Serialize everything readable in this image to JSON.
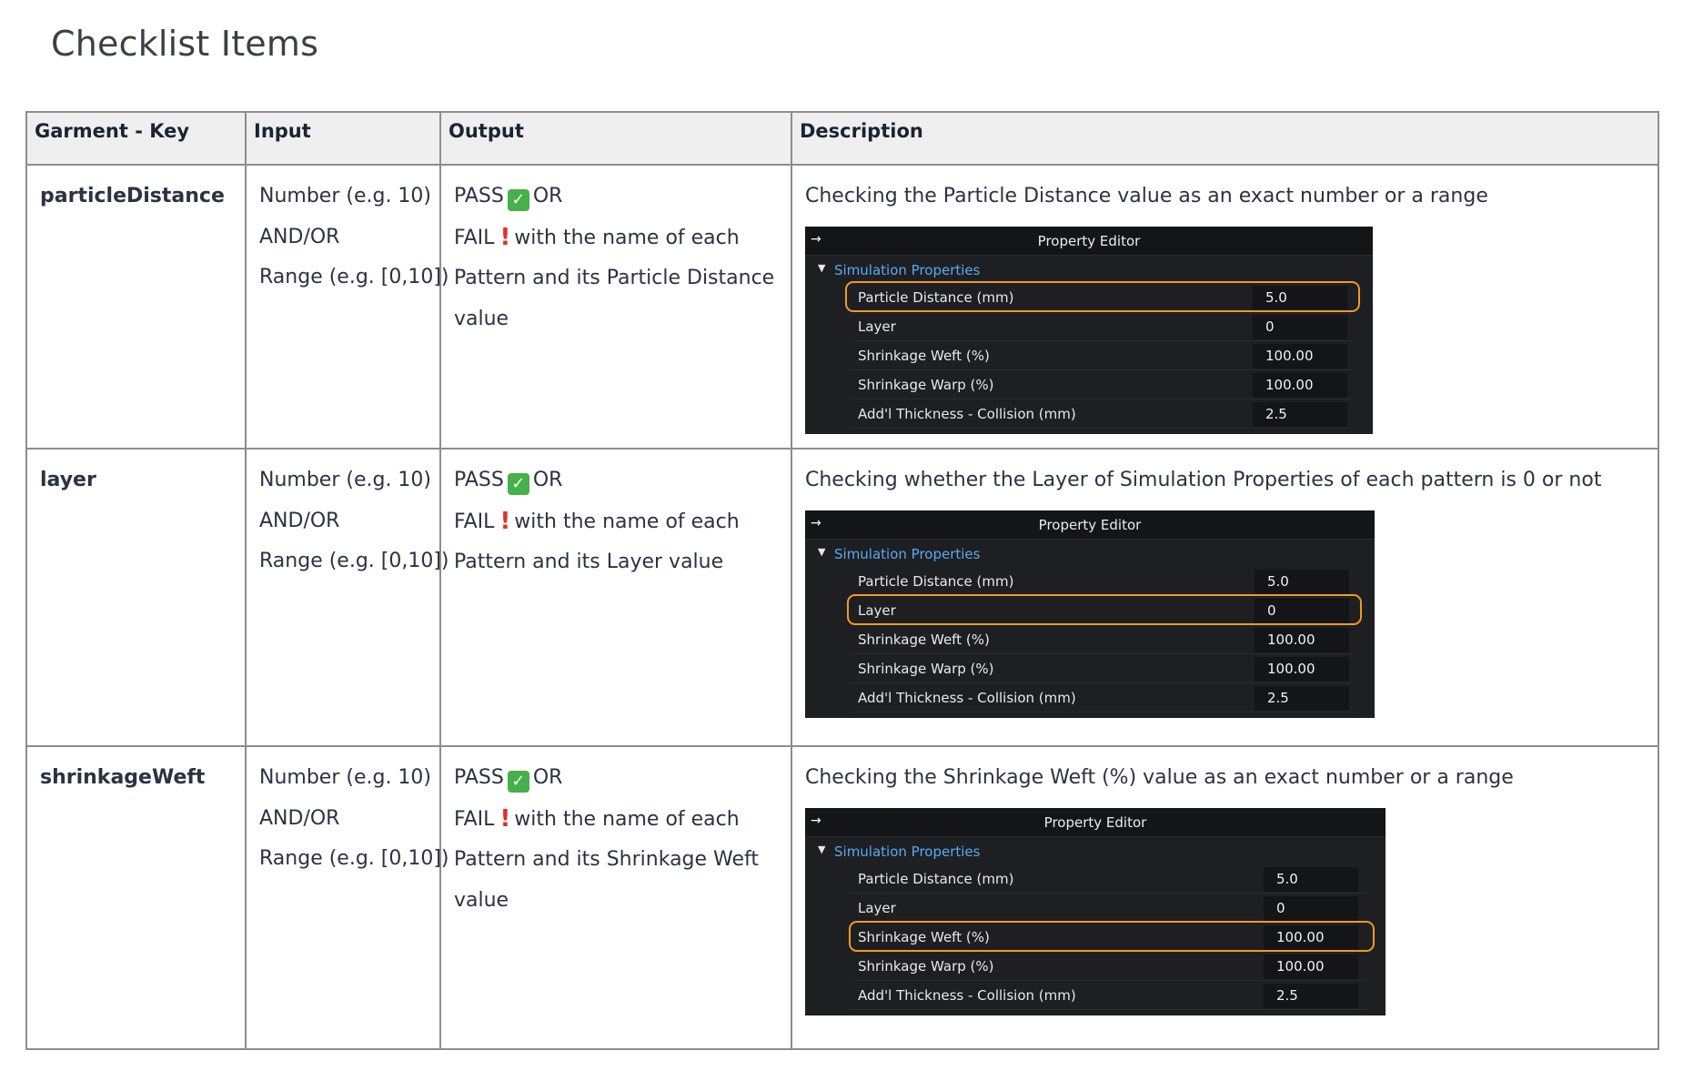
{
  "page_title": "Checklist Items",
  "table": {
    "headers": {
      "key": "Garment -  Key",
      "input": "Input",
      "output": "Output",
      "description": "Description"
    },
    "rows": [
      {
        "key": "particleDistance",
        "input_lines": [
          "Number (e.g. 10)",
          "AND/OR",
          "Range (e.g. [0,10])"
        ],
        "output": {
          "pass_word": "PASS",
          "pass_icon": "check-mark-icon",
          "or_word": "OR",
          "fail_word": "FAIL",
          "fail_icon": "exclamation-icon",
          "fail_text": "with the name of each",
          "continuation_lines": [
            "Pattern and its Particle Distance",
            "value"
          ]
        },
        "description": "Checking the Particle Distance value as an exact number or a range",
        "editor": {
          "title": "Property Editor",
          "section": "Simulation Properties",
          "highlighted_index": 0,
          "properties": [
            {
              "label": "Particle Distance (mm)",
              "value": "5.0"
            },
            {
              "label": "Layer",
              "value": "0"
            },
            {
              "label": "Shrinkage Weft (%)",
              "value": "100.00"
            },
            {
              "label": "Shrinkage Warp (%)",
              "value": "100.00"
            },
            {
              "label": "Add'l Thickness - Collision (mm)",
              "value": "2.5"
            }
          ]
        }
      },
      {
        "key": "layer",
        "input_lines": [
          "Number (e.g. 10)",
          "AND/OR",
          "Range (e.g. [0,10])"
        ],
        "output": {
          "pass_word": "PASS",
          "pass_icon": "check-mark-icon",
          "or_word": "OR",
          "fail_word": "FAIL",
          "fail_icon": "exclamation-icon",
          "fail_text": "with the name of each",
          "continuation_lines": [
            "Pattern and its Layer value"
          ]
        },
        "description": "Checking whether the Layer of Simulation Properties of each pattern is 0 or not",
        "editor": {
          "title": "Property Editor",
          "section": "Simulation Properties",
          "highlighted_index": 1,
          "properties": [
            {
              "label": "Particle Distance (mm)",
              "value": "5.0"
            },
            {
              "label": "Layer",
              "value": "0"
            },
            {
              "label": "Shrinkage Weft (%)",
              "value": "100.00"
            },
            {
              "label": "Shrinkage Warp (%)",
              "value": "100.00"
            },
            {
              "label": "Add'l Thickness - Collision (mm)",
              "value": "2.5"
            }
          ]
        }
      },
      {
        "key": "shrinkageWeft",
        "input_lines": [
          "Number (e.g. 10)",
          "AND/OR",
          "Range (e.g. [0,10])"
        ],
        "output": {
          "pass_word": "PASS",
          "pass_icon": "check-mark-icon",
          "or_word": "OR",
          "fail_word": "FAIL",
          "fail_icon": "exclamation-icon",
          "fail_text": "with the name of each",
          "continuation_lines": [
            "Pattern and its Shrinkage Weft",
            "value"
          ]
        },
        "description": "Checking the Shrinkage Weft (%) value as an exact number or a range",
        "editor": {
          "title": "Property Editor",
          "section": "Simulation Properties",
          "highlighted_index": 2,
          "properties": [
            {
              "label": "Particle Distance (mm)",
              "value": "5.0"
            },
            {
              "label": "Layer",
              "value": "0"
            },
            {
              "label": "Shrinkage Weft (%)",
              "value": "100.00"
            },
            {
              "label": "Shrinkage Warp (%)",
              "value": "100.00"
            },
            {
              "label": "Add'l Thickness - Collision (mm)",
              "value": "2.5"
            }
          ]
        }
      }
    ]
  },
  "colors": {
    "highlight": "#f29a1d",
    "section_link": "#5aa9f0",
    "pass_icon_bg": "#46b04a",
    "fail_icon": "#e0302c",
    "editor_bg": "#1e1f23"
  }
}
